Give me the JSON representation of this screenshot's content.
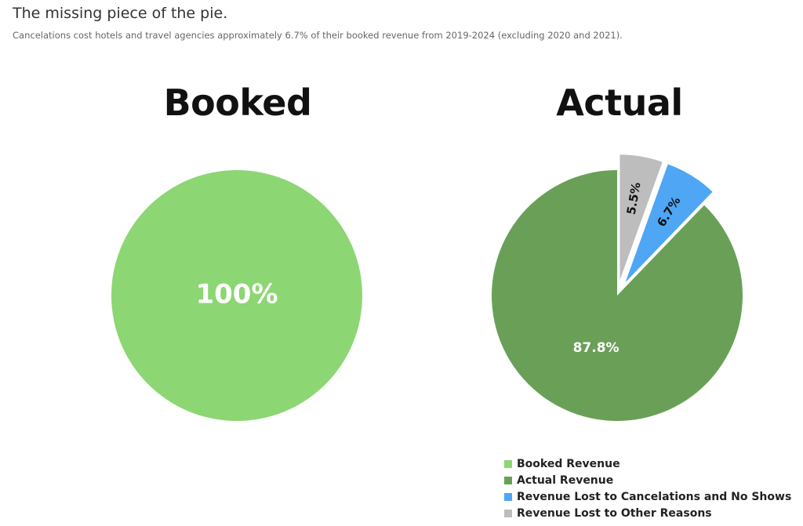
{
  "title": "The missing piece of the pie.",
  "subtitle": "Cancelations cost hotels and travel agencies approximately 6.7% of their booked revenue from 2019-2024 (excluding 2020 and 2021).",
  "chart_data": [
    {
      "type": "pie",
      "title": "Booked",
      "slices": [
        {
          "name": "Booked Revenue",
          "value": 100,
          "label": "100%",
          "color": "#8cd673",
          "label_color": "#ffffff"
        }
      ]
    },
    {
      "type": "pie",
      "title": "Actual",
      "slices": [
        {
          "name": "Revenue Lost to Other Reasons",
          "value": 5.5,
          "label": "5.5%",
          "color": "#bdbdbd",
          "label_color": "#111111",
          "exploded": true
        },
        {
          "name": "Revenue Lost to Cancelations and No Shows",
          "value": 6.7,
          "label": "6.7%",
          "color": "#4ea6f5",
          "label_color": "#111111",
          "exploded": true
        },
        {
          "name": "Actual Revenue",
          "value": 87.8,
          "label": "87.8%",
          "color": "#6a9f58",
          "label_color": "#ffffff"
        }
      ]
    }
  ],
  "legend": [
    {
      "label": "Booked Revenue",
      "color": "#8cd673"
    },
    {
      "label": "Actual Revenue",
      "color": "#6a9f58"
    },
    {
      "label": "Revenue Lost to Cancelations and No Shows",
      "color": "#4ea6f5"
    },
    {
      "label": "Revenue Lost to Other Reasons",
      "color": "#bdbdbd"
    }
  ]
}
